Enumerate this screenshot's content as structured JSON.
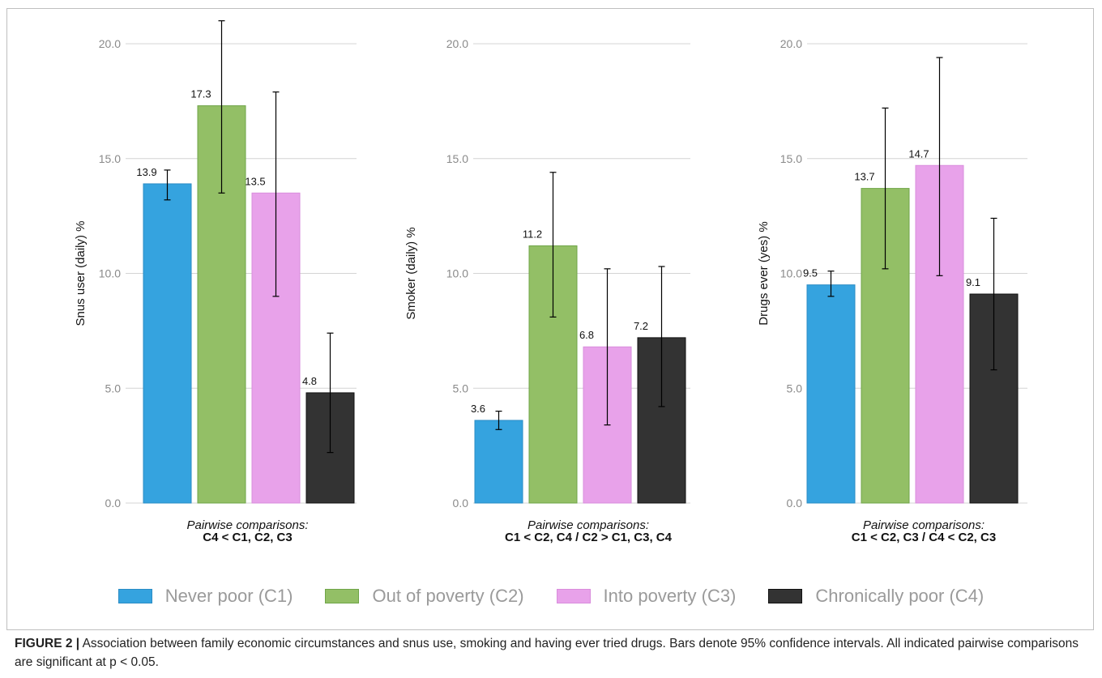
{
  "chart_data": [
    {
      "type": "bar",
      "ylabel": "Snus user (daily) %",
      "ylim": [
        0,
        20.0
      ],
      "yticks": [
        "0.0",
        "5.0",
        "10.0",
        "15.0",
        "20.0"
      ],
      "categories": [
        "Never poor (C1)",
        "Out of poverty (C2)",
        "Into poverty (C3)",
        "Chronically poor (C4)"
      ],
      "values": [
        13.9,
        17.3,
        13.5,
        4.8
      ],
      "value_labels": [
        "13.9",
        "17.3",
        "13.5",
        "4.8"
      ],
      "ci_lower": [
        13.2,
        13.5,
        9.0,
        2.2
      ],
      "ci_upper": [
        14.5,
        21.0,
        17.9,
        7.4
      ],
      "comparison_title": "Pairwise comparisons:",
      "comparison_text": "C4 < C1, C2, C3",
      "grid": true
    },
    {
      "type": "bar",
      "ylabel": "Smoker (daily) %",
      "ylim": [
        0,
        20.0
      ],
      "yticks": [
        "0.0",
        "5.0",
        "10.0",
        "15.0",
        "20.0"
      ],
      "categories": [
        "Never poor (C1)",
        "Out of poverty (C2)",
        "Into poverty (C3)",
        "Chronically poor (C4)"
      ],
      "values": [
        3.6,
        11.2,
        6.8,
        7.2
      ],
      "value_labels": [
        "3.6",
        "11.2",
        "6.8",
        "7.2"
      ],
      "ci_lower": [
        3.2,
        8.1,
        3.4,
        4.2
      ],
      "ci_upper": [
        4.0,
        14.4,
        10.2,
        10.3
      ],
      "comparison_title": "Pairwise comparisons:",
      "comparison_text": "C1 < C2, C4 / C2 > C1, C3, C4",
      "grid": true
    },
    {
      "type": "bar",
      "ylabel": "Drugs ever (yes) %",
      "ylim": [
        0,
        20.0
      ],
      "yticks": [
        "0.0",
        "5.0",
        "10.0",
        "15.0",
        "20.0"
      ],
      "categories": [
        "Never poor (C1)",
        "Out of poverty (C2)",
        "Into poverty (C3)",
        "Chronically poor (C4)"
      ],
      "values": [
        9.5,
        13.7,
        14.7,
        9.1
      ],
      "value_labels": [
        "9.5",
        "13.7",
        "14.7",
        "9.1"
      ],
      "ci_lower": [
        9.0,
        10.2,
        9.9,
        5.8
      ],
      "ci_upper": [
        10.1,
        17.2,
        19.4,
        12.4
      ],
      "comparison_title": "Pairwise comparisons:",
      "comparison_text": "C1 < C2, C3 / C4 < C2, C3",
      "grid": true
    }
  ],
  "legend": {
    "placement": "bottom",
    "items": [
      {
        "label": "Never poor (C1)",
        "fill": "#35a3df",
        "stroke": "#2b8cc4"
      },
      {
        "label": "Out of poverty (C2)",
        "fill": "#93bf66",
        "stroke": "#6fa548"
      },
      {
        "label": "Into poverty (C3)",
        "fill": "#e8a2ea",
        "stroke": "#d98ddc"
      },
      {
        "label": "Chronically poor (C4)",
        "fill": "#333333",
        "stroke": "#111111"
      }
    ]
  },
  "caption": {
    "label": "FIGURE 2 |",
    "text": " Association between family economic circumstances and snus use, smoking and having ever tried drugs. Bars denote 95% confidence intervals. All indicated pairwise comparisons are significant at p < 0.05."
  }
}
